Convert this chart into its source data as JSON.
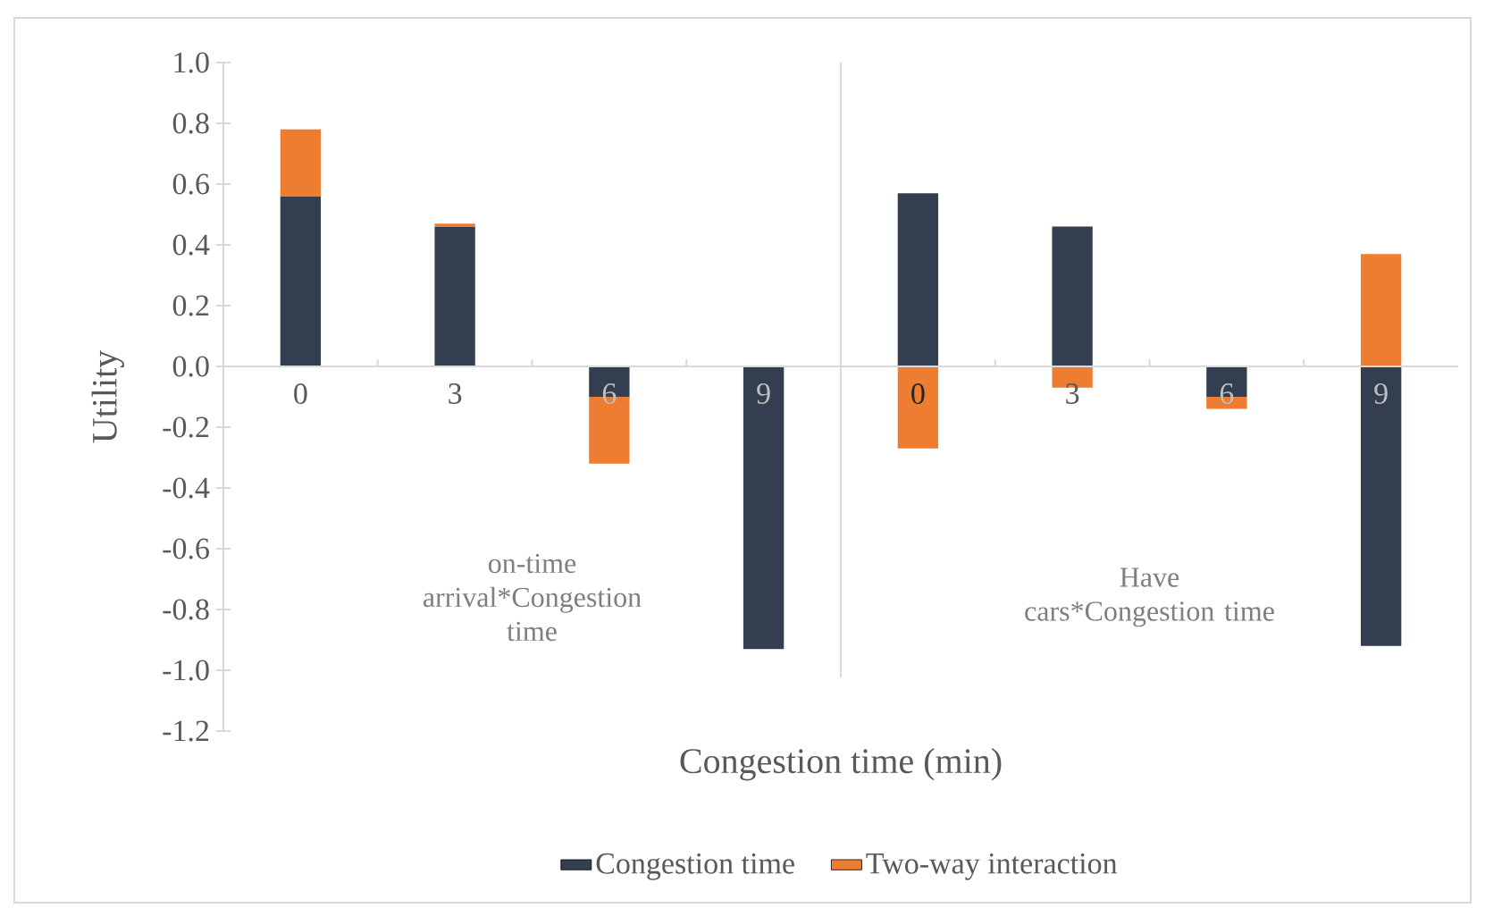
{
  "chart_data": {
    "type": "bar",
    "stacked": true,
    "xlabel": "Congestion time (min)",
    "ylabel": "Utility",
    "categories": [
      "0",
      "3",
      "6",
      "9",
      "0",
      "3",
      "6",
      "9"
    ],
    "series": [
      {
        "name": "Congestion time",
        "color": "#333f50",
        "values": [
          0.56,
          0.46,
          -0.1,
          -0.93,
          0.57,
          0.46,
          -0.1,
          -0.92
        ]
      },
      {
        "name": "Two-way interaction",
        "color": "#ed7d31",
        "values": [
          0.22,
          0.01,
          -0.22,
          0,
          -0.27,
          -0.07,
          -0.04,
          0.37
        ]
      }
    ],
    "ylim": [
      -1.2,
      1.0
    ],
    "yticks": [
      -1.2,
      {
        "value": -1.0,
        "label": "-1.0"
      },
      -0.8,
      -0.6,
      -0.4,
      -0.2,
      {
        "value": 0.0,
        "label": "0.0"
      },
      0.2,
      0.4,
      0.6,
      0.8,
      {
        "value": 1.0,
        "label": "1.0"
      }
    ],
    "annotations": [
      "on-time arrival*Congestion time",
      "Have cars*Congestion time"
    ],
    "legend": "bottom"
  }
}
